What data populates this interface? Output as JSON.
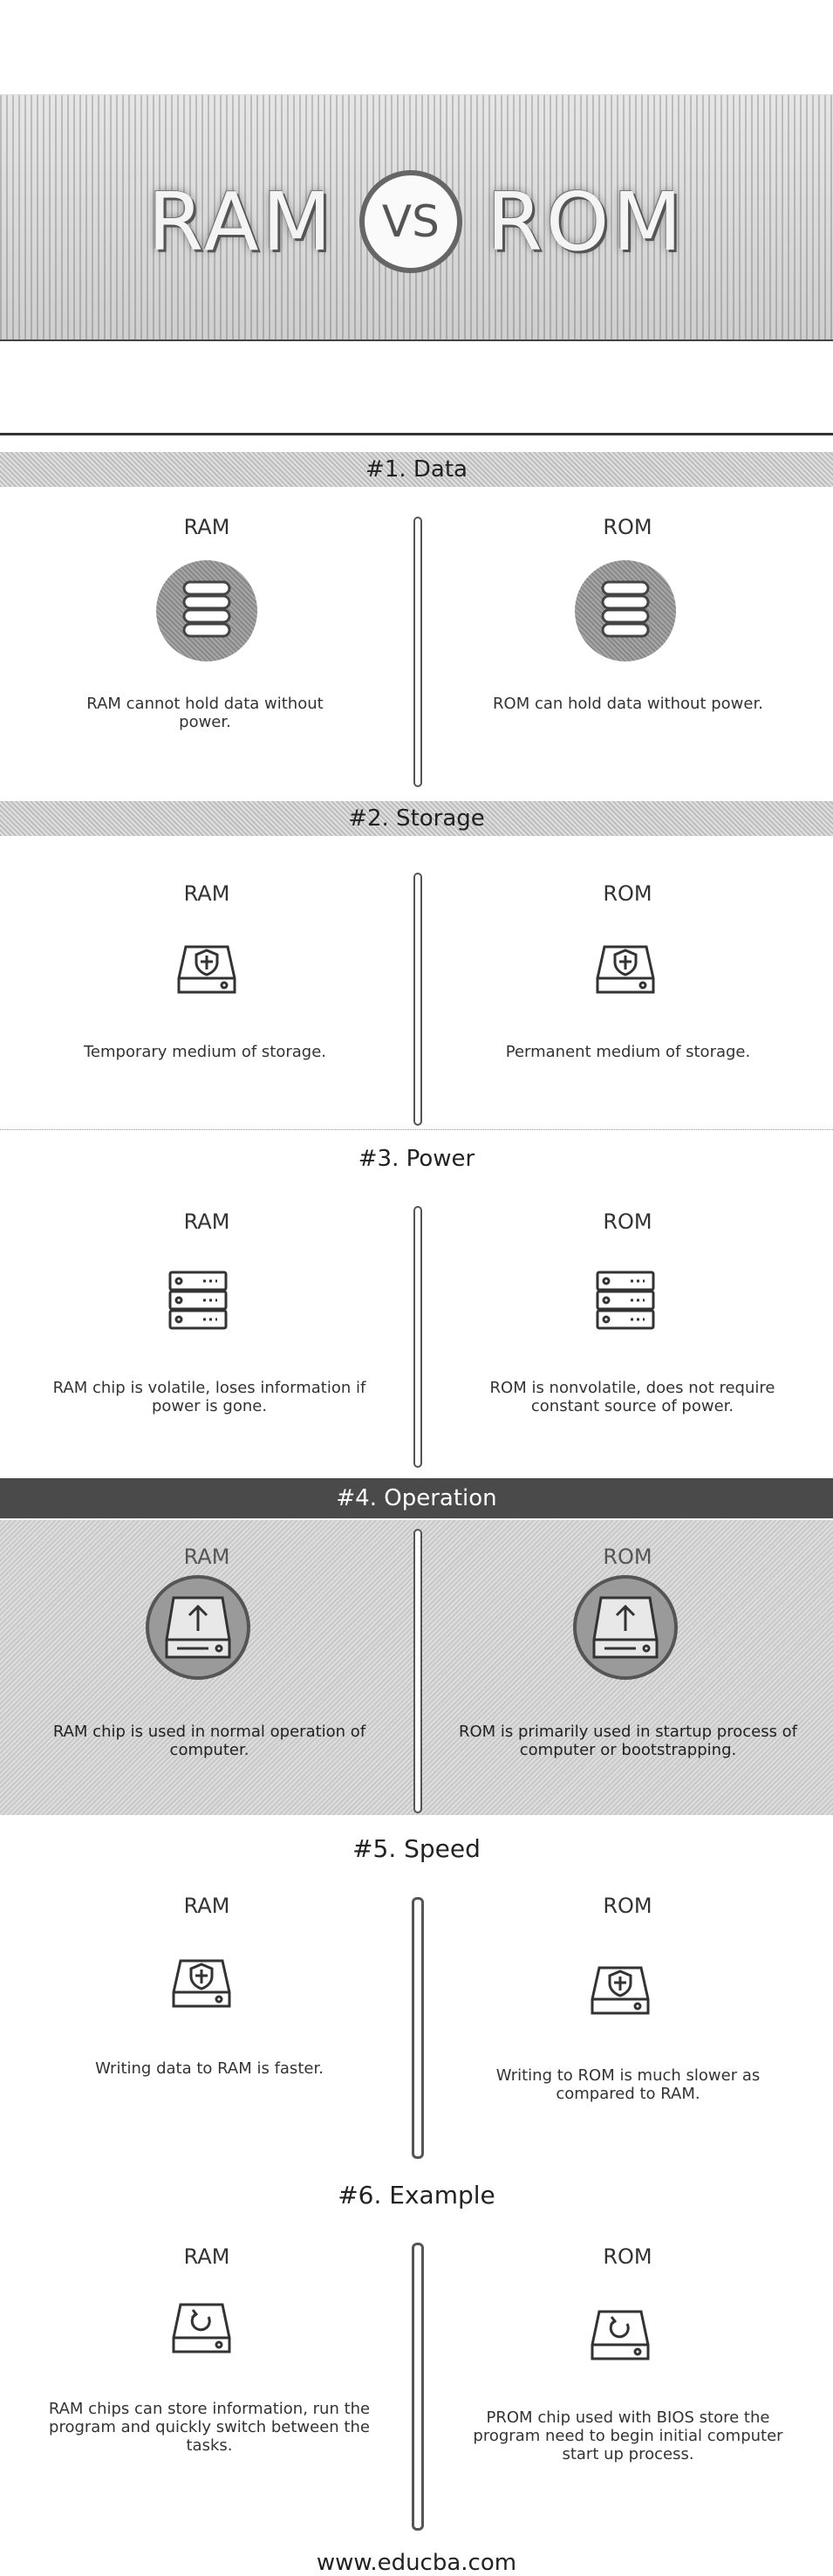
{
  "banner": {
    "left": "RAM",
    "vs": "VS",
    "right": "ROM"
  },
  "sections": [
    {
      "heading": "#1. Data",
      "ram_label": "RAM",
      "rom_label": "ROM",
      "ram_text": "RAM cannot hold data without power.",
      "rom_text": "ROM can hold data without power.",
      "icon": "database-icon"
    },
    {
      "heading": "#2. Storage",
      "ram_label": "RAM",
      "rom_label": "ROM",
      "ram_text": "Temporary medium of storage.",
      "rom_text": "Permanent medium of storage.",
      "icon": "secure-drive-icon"
    },
    {
      "heading": "#3. Power",
      "ram_label": "RAM",
      "rom_label": "ROM",
      "ram_text": "RAM chip is volatile, loses information if power is gone.",
      "rom_text": "ROM is nonvolatile, does not require constant source of power.",
      "icon": "server-icon"
    },
    {
      "heading": "#4. Operation",
      "ram_label": "RAM",
      "rom_label": "ROM",
      "ram_text": "RAM chip is used in normal operation of computer.",
      "rom_text": "ROM is primarily used in startup process of computer or bootstrapping.",
      "icon": "upload-drive-icon"
    },
    {
      "heading": "#5. Speed",
      "ram_label": "RAM",
      "rom_label": "ROM",
      "ram_text": "Writing data to RAM is faster.",
      "rom_text": "Writing to ROM is much slower as compared to RAM.",
      "icon": "secure-drive-icon"
    },
    {
      "heading": "#6. Example",
      "ram_label": "RAM",
      "rom_label": "ROM",
      "ram_text": "RAM chips can store information, run the program and quickly switch between the tasks.",
      "rom_text": "PROM chip used with BIOS store the program need to begin initial computer start up process.",
      "icon": "refresh-drive-icon"
    }
  ],
  "footer": {
    "site": "www.educba.com"
  }
}
